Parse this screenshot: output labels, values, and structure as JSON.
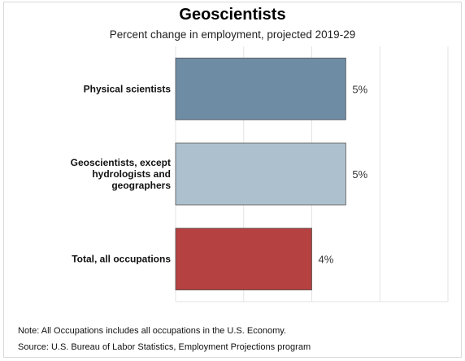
{
  "chart_data": {
    "type": "bar",
    "orientation": "horizontal",
    "title": "Geoscientists",
    "subtitle": "Percent change in employment, projected 2019-29",
    "categories": [
      [
        "Physical scientists"
      ],
      [
        "Geoscientists, except",
        "hydrologists and",
        "geographers"
      ],
      [
        "Total, all occupations"
      ]
    ],
    "values": [
      5,
      5,
      4
    ],
    "value_labels": [
      "5%",
      "5%",
      "4%"
    ],
    "colors": [
      "#6f8ca5",
      "#adc0ce",
      "#b54141"
    ],
    "xlim": [
      0,
      8
    ],
    "grid": true
  },
  "notes": {
    "note": "Note: All Occupations includes all occupations in the U.S. Economy.",
    "source": "Source: U.S. Bureau of Labor Statistics, Employment Projections program"
  }
}
